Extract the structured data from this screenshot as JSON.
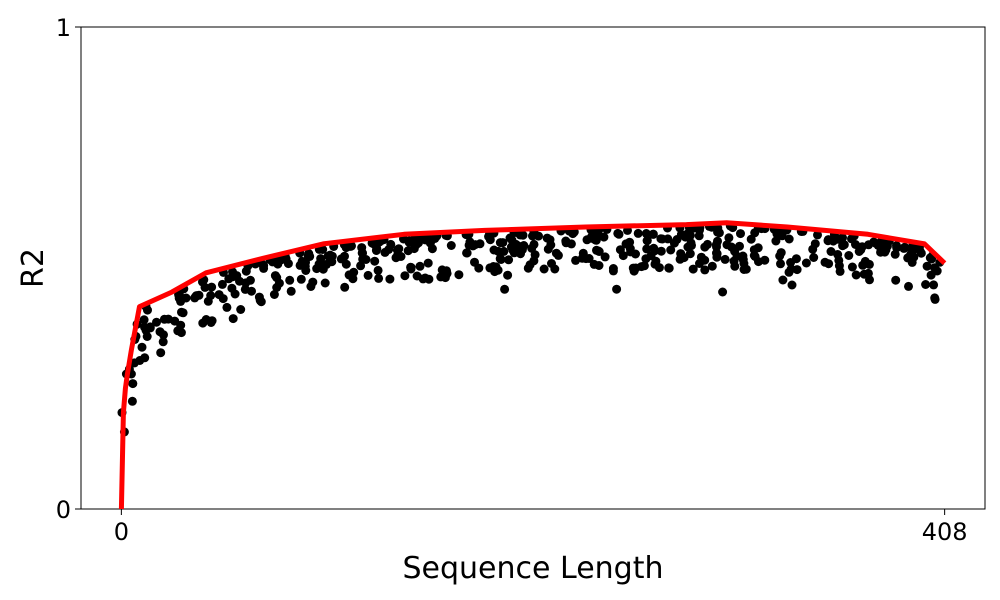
{
  "chart_data": {
    "type": "scatter",
    "title": "",
    "xlabel": "Sequence Length",
    "ylabel": "R2",
    "xlim": [
      -20,
      428
    ],
    "ylim": [
      0,
      1
    ],
    "x_ticks": [
      0,
      408
    ],
    "x_tick_labels": [
      "0",
      "408"
    ],
    "y_ticks": [
      0,
      1
    ],
    "y_tick_labels": [
      "0",
      "1"
    ],
    "grid": false,
    "colors": {
      "points": "#000000",
      "envelope": "#ff0000"
    },
    "envelope_line": {
      "x": [
        0,
        1,
        2,
        3,
        5,
        9,
        25,
        42,
        70,
        100,
        140,
        180,
        230,
        280,
        300,
        330,
        370,
        398,
        408
      ],
      "y": [
        0.0,
        0.2,
        0.25,
        0.28,
        0.33,
        0.42,
        0.45,
        0.49,
        0.52,
        0.55,
        0.57,
        0.578,
        0.585,
        0.59,
        0.594,
        0.585,
        0.57,
        0.55,
        0.51
      ]
    },
    "points": {
      "x_range": [
        0,
        408
      ],
      "count": 500,
      "y_min_approx": 0.35,
      "y_max_approx": 0.56
    }
  }
}
